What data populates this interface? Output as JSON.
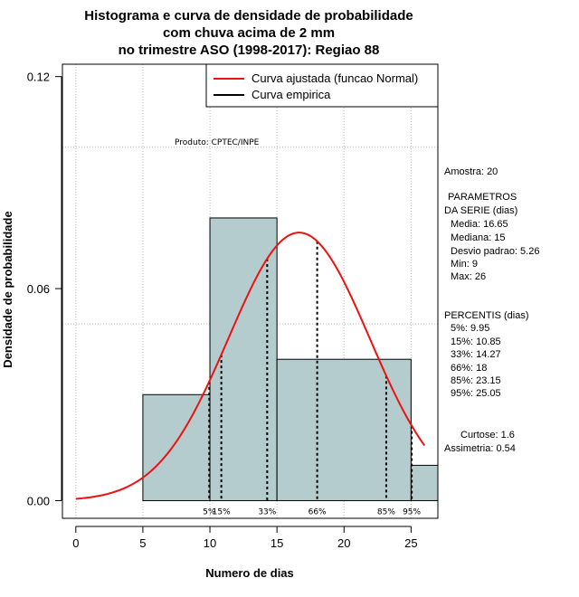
{
  "chart_data": {
    "type": "bar",
    "title_lines": [
      "Histograma e curva de densidade de probabilidade",
      "com chuva acima de 2 mm",
      "no trimestre ASO (1998-2017): Regiao 88"
    ],
    "xlabel": "Numero de dias",
    "ylabel": "Densidade de probabilidade",
    "xlim": [
      -1,
      27
    ],
    "ylim": [
      -0.005,
      0.1235
    ],
    "x_ticks": [
      0,
      5,
      10,
      15,
      20,
      25
    ],
    "y_ticks": [
      0.0,
      0.06,
      0.12
    ],
    "y_tick_labels": [
      "0.00",
      "0.06",
      "0.12"
    ],
    "grid_x": [
      0,
      5,
      10,
      15,
      20,
      25
    ],
    "grid_y": [
      0.05,
      0.1
    ],
    "bins": [
      {
        "start": 5,
        "end": 10,
        "density": 0.03
      },
      {
        "start": 10,
        "end": 15,
        "density": 0.08
      },
      {
        "start": 15,
        "end": 25,
        "density": 0.04
      },
      {
        "start": 25,
        "end": 27,
        "density": 0.01
      }
    ],
    "normal_fit": {
      "mean": 16.65,
      "sd": 5.26,
      "x_from": 0,
      "x_to": 26
    },
    "percentiles": [
      {
        "label": "5%",
        "value": 9.95
      },
      {
        "label": "15%",
        "value": 10.85
      },
      {
        "label": "33%",
        "value": 14.27
      },
      {
        "label": "66%",
        "value": 18
      },
      {
        "label": "85%",
        "value": 23.15
      },
      {
        "label": "95%",
        "value": 25.05
      }
    ],
    "watermark": "Produto: CPTEC/INPE",
    "legend": [
      {
        "label": "Curva ajustada (funcao Normal)",
        "color": "#ee1111"
      },
      {
        "label": "Curva empirica",
        "color": "#000000"
      }
    ],
    "colors": {
      "bar_fill": "#b4cccd",
      "curve": "#ee1111",
      "grid": "#bbbbbb",
      "frame": "#000000"
    },
    "stats_panel": [
      "Amostra: 20",
      "PARAMETROS",
      "DA SERIE (dias)",
      "Media: 16.65",
      "Mediana: 15",
      "Desvio padrao: 5.26",
      "Min: 9",
      "Max: 26",
      "PERCENTIS (dias)",
      "5%: 9.95",
      "15%: 10.85",
      "33%: 14.27",
      "66%: 18",
      "85%: 23.15",
      "95%: 25.05",
      "Curtose: 1.6",
      "Assimetria: 0.54"
    ]
  }
}
